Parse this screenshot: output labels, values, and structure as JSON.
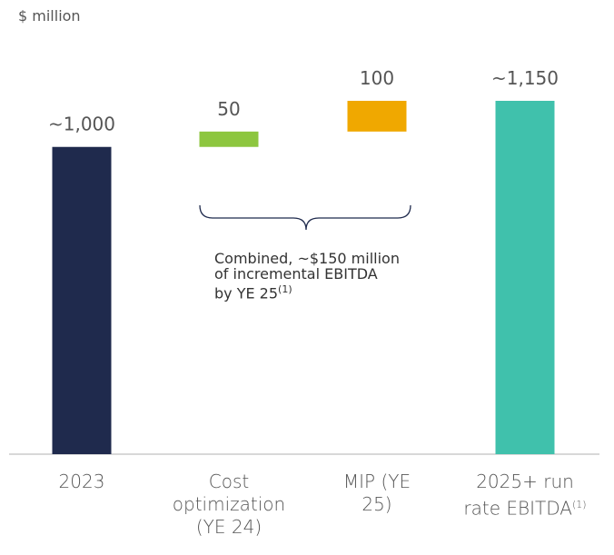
{
  "chart_data": {
    "type": "waterfall",
    "y_label": "$ million",
    "categories": [
      "2023",
      "Cost optimization (YE 24)",
      "MIP (YE 25)",
      "2025+ run rate EBITDA"
    ],
    "category_notes": [
      null,
      null,
      null,
      "(1)"
    ],
    "values": [
      1000,
      50,
      100,
      1150
    ],
    "value_labels": [
      "~1,000",
      "50",
      "100",
      "~1,150"
    ],
    "measure": [
      "absolute",
      "relative",
      "relative",
      "total"
    ],
    "colors": [
      "#1f2a4d",
      "#8dc63f",
      "#f0a800",
      "#40c1ac"
    ],
    "annotation": {
      "lines": [
        "Combined, ~$150 million",
        "of incremental EBITDA",
        "by YE 25"
      ],
      "note": "(1)"
    }
  }
}
